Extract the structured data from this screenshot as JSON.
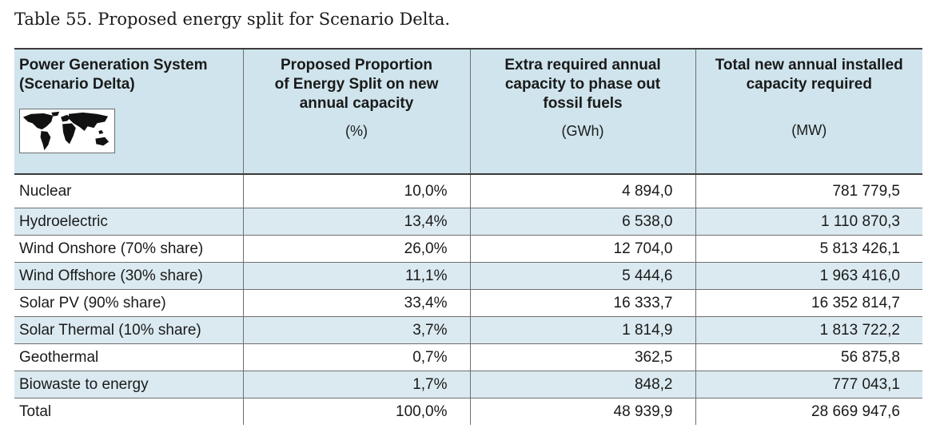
{
  "caption": "Table 55. Proposed energy split for Scenario Delta.",
  "headers": [
    {
      "line1": "Power Generation System",
      "line2": "(Scenario Delta)"
    },
    {
      "line1": "Proposed Proportion",
      "line2": "of Energy Split on new",
      "line3": "annual capacity",
      "unit": "(%)"
    },
    {
      "line1": "Extra required annual",
      "line2": "capacity to phase out",
      "line3": "fossil fuels",
      "unit": "(GWh)"
    },
    {
      "line1": "Total new annual installed",
      "line2": "capacity required",
      "unit": "(MW)"
    }
  ],
  "rows": [
    {
      "system": "Nuclear",
      "proportion": "10,0%",
      "extra": "4 894,0",
      "total": "781 779,5"
    },
    {
      "system": "Hydroelectric",
      "proportion": "13,4%",
      "extra": "6 538,0",
      "total": "1 110 870,3"
    },
    {
      "system": "Wind Onshore (70% share)",
      "proportion": "26,0%",
      "extra": "12 704,0",
      "total": "5 813 426,1"
    },
    {
      "system": "Wind Offshore (30% share)",
      "proportion": "11,1%",
      "extra": "5 444,6",
      "total": "1 963 416,0"
    },
    {
      "system": "Solar PV (90% share)",
      "proportion": "33,4%",
      "extra": "16 333,7",
      "total": "16 352 814,7"
    },
    {
      "system": "Solar Thermal (10% share)",
      "proportion": "3,7%",
      "extra": "1 814,9",
      "total": "1 813 722,2"
    },
    {
      "system": "Geothermal",
      "proportion": "0,7%",
      "extra": "362,5",
      "total": "56 875,8"
    },
    {
      "system": "Biowaste to energy",
      "proportion": "1,7%",
      "extra": "848,2",
      "total": "777 043,1"
    },
    {
      "system": "Total",
      "proportion": "100,0%",
      "extra": "48 939,9",
      "total": "28 669 947,6"
    }
  ],
  "colors": {
    "header_bg": "#cfe4ec",
    "row_shade": "#dbeaf0",
    "rule": "#3a3a3a"
  },
  "icons": {
    "header_image": "world-map-icon"
  }
}
